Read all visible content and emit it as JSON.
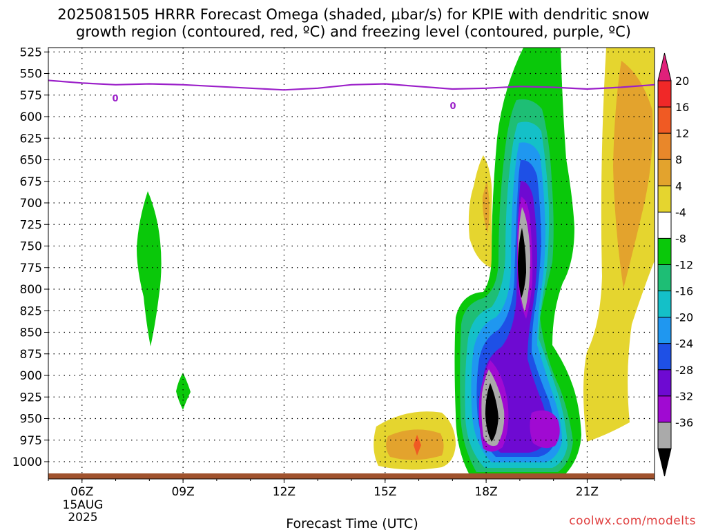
{
  "chart_data": {
    "type": "heatmap",
    "title_line1": "2025081505 HRRR Forecast Omega (shaded, μbar/s) for KPIE with dendritic snow",
    "title_line2": "growth region (contoured, red, ºC) and freezing level (contoured, purple, ºC)",
    "xlabel": "Forecast Time (UTC)",
    "credit": "coolwx.com/modelts",
    "x_ticks": [
      "06Z",
      "09Z",
      "12Z",
      "15Z",
      "18Z",
      "21Z"
    ],
    "x_date_lines": [
      "15AUG",
      "2025"
    ],
    "x_range_hours": [
      5,
      23
    ],
    "y_ticks": [
      "525",
      "550",
      "575",
      "600",
      "625",
      "650",
      "675",
      "700",
      "725",
      "750",
      "775",
      "800",
      "825",
      "850",
      "875",
      "900",
      "925",
      "950",
      "975",
      "1000"
    ],
    "y_range_hpa": [
      520,
      1020
    ],
    "colorbar": {
      "labels": [
        "20",
        "16",
        "12",
        "8",
        "4",
        "-4",
        "-8",
        "-12",
        "-16",
        "-20",
        "-24",
        "-28",
        "-32",
        "-36"
      ],
      "colors": [
        "#e0207a",
        "#f02828",
        "#f05a23",
        "#e9872a",
        "#e3a32d",
        "#e5d52f",
        "#ffffff",
        "#0ac80a",
        "#1ebe75",
        "#14c0c8",
        "#1f97f0",
        "#1e50e6",
        "#6e0ad2",
        "#a00ad2",
        "#aaaaaa",
        "#000000"
      ]
    },
    "freezing_level": {
      "color": "#9b1fc9",
      "contour_label": "0",
      "points": [
        [
          5,
          558
        ],
        [
          6,
          561
        ],
        [
          7,
          563
        ],
        [
          8,
          562
        ],
        [
          9,
          563
        ],
        [
          10,
          565
        ],
        [
          11,
          567
        ],
        [
          12,
          569
        ],
        [
          13,
          567
        ],
        [
          14,
          563
        ],
        [
          15,
          562
        ],
        [
          16,
          565
        ],
        [
          17,
          568
        ],
        [
          18,
          567
        ],
        [
          19,
          565
        ],
        [
          20,
          566
        ],
        [
          21,
          568
        ],
        [
          22,
          566
        ],
        [
          23,
          563
        ]
      ]
    },
    "ground_color": "#a0522d"
  }
}
